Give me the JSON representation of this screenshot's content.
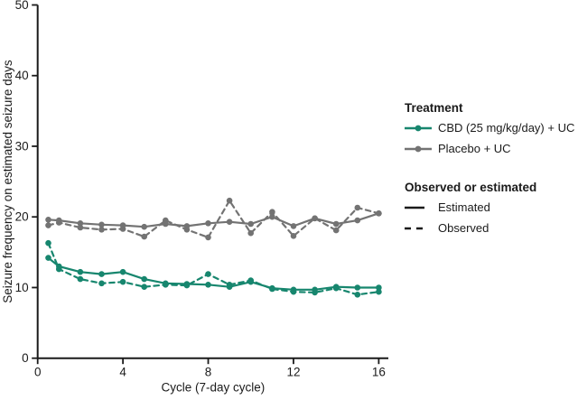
{
  "figure_title": "",
  "accent_colors": {
    "cbd_teal": "#17866e",
    "placebo_gray": "#737373",
    "axis_black": "#1a1a1a"
  },
  "legend": {
    "treatment_title": "Treatment",
    "treatment_items": [
      {
        "label": "CBD (25 mg/kg/day) + UC",
        "color": "#17866e"
      },
      {
        "label": "Placebo + UC",
        "color": "#737373"
      }
    ],
    "linetype_title": "Observed or estimated",
    "linetype_items": [
      {
        "label": "Estimated",
        "style": "solid"
      },
      {
        "label": "Observed",
        "style": "dashed"
      }
    ]
  },
  "chart_data": {
    "type": "line",
    "title": "",
    "xlabel": "Cycle (7-day cycle)",
    "ylabel": "Seizure frequency on estimated seizure days",
    "xlim": [
      0,
      16.45
    ],
    "ylim": [
      0,
      50
    ],
    "xticks": [
      0,
      4,
      8,
      12,
      16
    ],
    "yticks": [
      0,
      10,
      20,
      30,
      40,
      50
    ],
    "grid": false,
    "legend_position": "right",
    "x": [
      0.5,
      1,
      2,
      3,
      4,
      5,
      6,
      7,
      8,
      9,
      10,
      11,
      12,
      13,
      14,
      15,
      16
    ],
    "series": [
      {
        "name": "Placebo + UC — Observed",
        "treatment": "Placebo + UC",
        "linetype": "Observed",
        "style": "dashed",
        "color": "#737373",
        "values": [
          18.8,
          19.2,
          18.5,
          18.2,
          18.3,
          17.2,
          19.5,
          18.2,
          17.1,
          22.3,
          17.7,
          20.7,
          17.3,
          19.8,
          18.1,
          21.3,
          20.5
        ]
      },
      {
        "name": "Placebo + UC — Estimated",
        "treatment": "Placebo + UC",
        "linetype": "Estimated",
        "style": "solid",
        "color": "#737373",
        "values": [
          19.6,
          19.5,
          19.1,
          18.9,
          18.8,
          18.6,
          19.0,
          18.7,
          19.1,
          19.3,
          19.0,
          20.0,
          18.7,
          19.8,
          19.0,
          19.5,
          20.5
        ]
      },
      {
        "name": "CBD (25 mg/kg/day) + UC — Observed",
        "treatment": "CBD (25 mg/kg/day) + UC",
        "linetype": "Observed",
        "style": "dashed",
        "color": "#17866e",
        "values": [
          16.3,
          12.6,
          11.2,
          10.6,
          10.8,
          10.1,
          10.4,
          10.3,
          11.9,
          10.4,
          11.0,
          9.8,
          9.4,
          9.3,
          9.9,
          9.0,
          9.4
        ]
      },
      {
        "name": "CBD (25 mg/kg/day) + UC — Estimated",
        "treatment": "CBD (25 mg/kg/day) + UC",
        "linetype": "Estimated",
        "style": "solid",
        "color": "#17866e",
        "values": [
          14.2,
          13.0,
          12.2,
          11.9,
          12.2,
          11.2,
          10.6,
          10.5,
          10.4,
          10.1,
          10.8,
          9.9,
          9.7,
          9.7,
          10.1,
          10.0,
          10.0
        ]
      }
    ]
  }
}
